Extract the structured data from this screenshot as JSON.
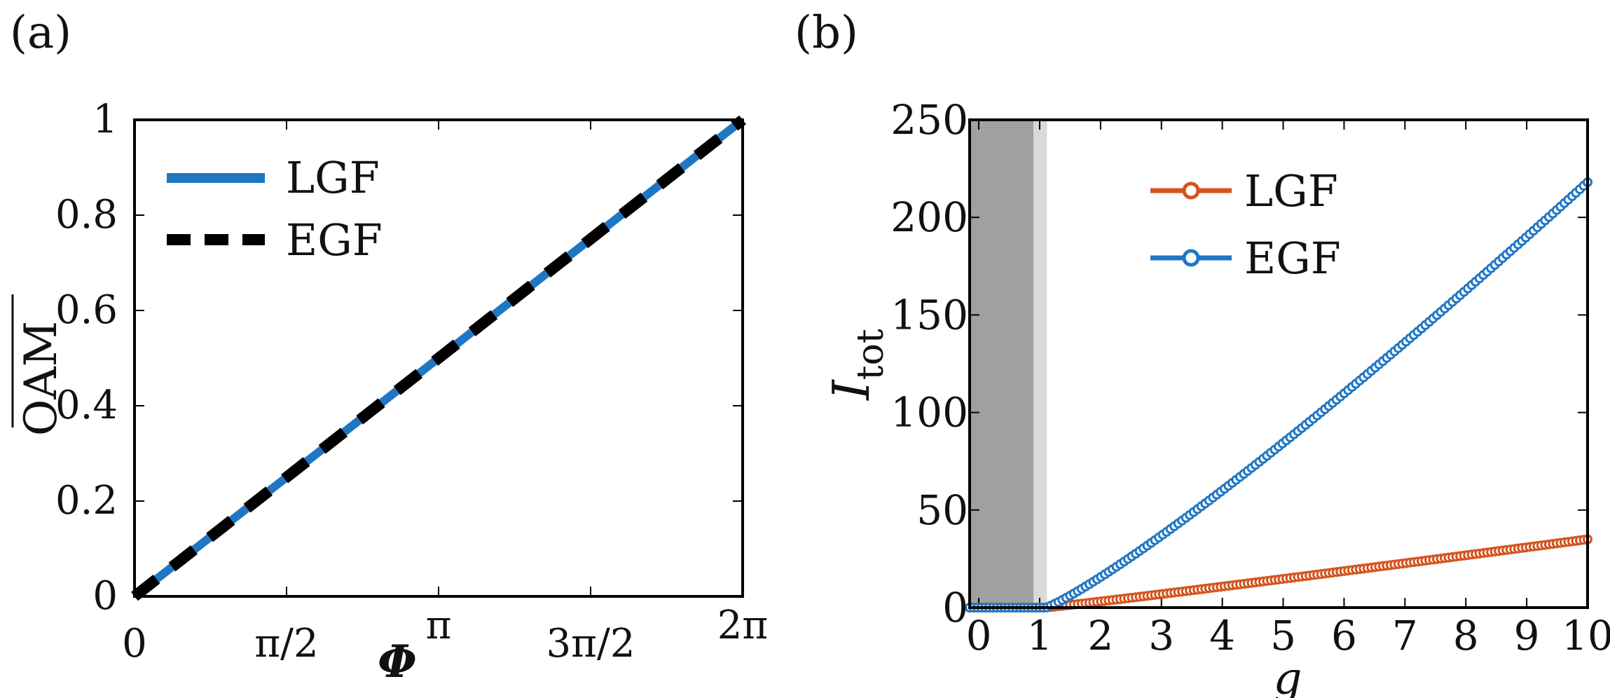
{
  "panels": {
    "a_label": "(a)",
    "b_label": "(b)"
  },
  "chart_data": [
    {
      "type": "line",
      "panel": "(a)",
      "xlabel": "Φ",
      "ylabel": "OAM",
      "xlim": [
        0,
        6.2832
      ],
      "ylim": [
        0,
        1
      ],
      "xticks": [
        {
          "value": 0,
          "label": "0"
        },
        {
          "value": 1.5708,
          "label": "π/2"
        },
        {
          "value": 3.1416,
          "label": "π"
        },
        {
          "value": 4.7124,
          "label": "3π/2"
        },
        {
          "value": 6.2832,
          "label": "2π"
        }
      ],
      "yticks": [
        {
          "value": 0,
          "label": "0"
        },
        {
          "value": 0.2,
          "label": "0.2"
        },
        {
          "value": 0.4,
          "label": "0.4"
        },
        {
          "value": 0.6,
          "label": "0.6"
        },
        {
          "value": 0.8,
          "label": "0.8"
        },
        {
          "value": 1,
          "label": "1"
        }
      ],
      "legend_position": "top-left",
      "series": [
        {
          "name": "LGF",
          "color": "#1f77c4",
          "style": "solid",
          "x": [
            0,
            6.2832
          ],
          "y": [
            0,
            1
          ]
        },
        {
          "name": "EGF",
          "color": "#000000",
          "style": "dashed",
          "x": [
            0,
            6.2832
          ],
          "y": [
            0,
            1
          ]
        }
      ]
    },
    {
      "type": "line",
      "panel": "(b)",
      "xlabel": "g",
      "ylabel": "I",
      "ylabel_sub": "tot",
      "xlim": [
        -0.15,
        10
      ],
      "ylim": [
        0,
        250
      ],
      "xticks": [
        {
          "value": 0,
          "label": "0"
        },
        {
          "value": 1,
          "label": "1"
        },
        {
          "value": 2,
          "label": "2"
        },
        {
          "value": 3,
          "label": "3"
        },
        {
          "value": 4,
          "label": "4"
        },
        {
          "value": 5,
          "label": "5"
        },
        {
          "value": 6,
          "label": "6"
        },
        {
          "value": 7,
          "label": "7"
        },
        {
          "value": 8,
          "label": "8"
        },
        {
          "value": 9,
          "label": "9"
        },
        {
          "value": 10,
          "label": "10"
        }
      ],
      "yticks": [
        {
          "value": 0,
          "label": "0"
        },
        {
          "value": 50,
          "label": "50"
        },
        {
          "value": 100,
          "label": "100"
        },
        {
          "value": 150,
          "label": "150"
        },
        {
          "value": 200,
          "label": "200"
        },
        {
          "value": 250,
          "label": "250"
        }
      ],
      "shaded_regions": [
        {
          "x": [
            -0.15,
            0.9
          ],
          "color": "#a0a0a0"
        },
        {
          "x": [
            0.9,
            1.12
          ],
          "color": "#d9d9d9"
        }
      ],
      "legend_position": "top-center",
      "series": [
        {
          "name": "LGF",
          "color": "#d4541f",
          "marker": "circle",
          "x_range": [
            -0.15,
            10
          ],
          "threshold": 1.1,
          "y_at_end": 35
        },
        {
          "name": "EGF",
          "color": "#1f77c4",
          "marker": "circle",
          "x_range": [
            -0.15,
            10
          ],
          "threshold": 1.1,
          "y_at_end": 218
        }
      ]
    }
  ]
}
